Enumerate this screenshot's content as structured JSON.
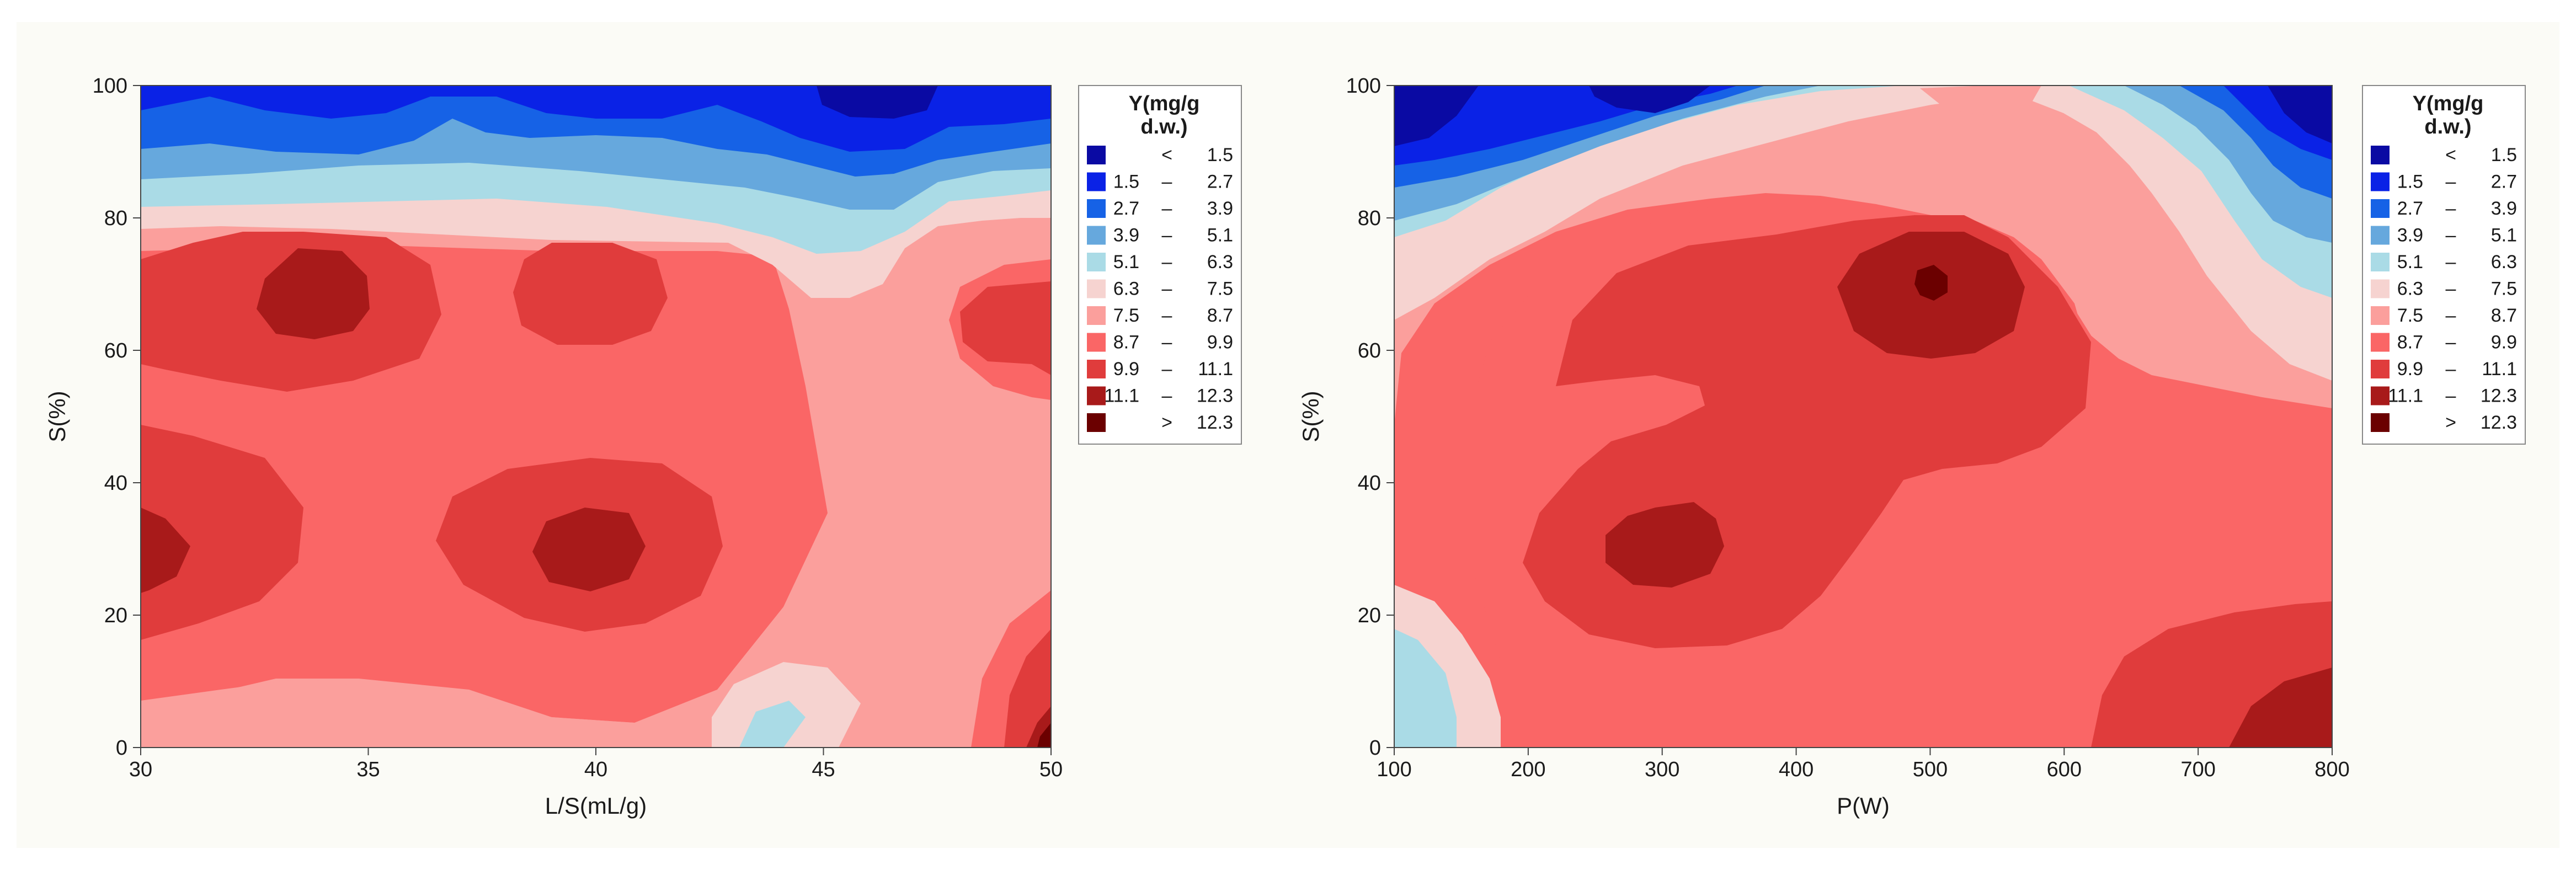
{
  "chart_data": [
    {
      "type": "contour",
      "title": "",
      "xlabel": "L/S(mL/g)",
      "ylabel": "S(%)",
      "xlim": [
        30,
        50
      ],
      "ylim": [
        0,
        100
      ],
      "xticks": [
        30,
        35,
        40,
        45,
        50
      ],
      "yticks": [
        0,
        20,
        40,
        60,
        80,
        100
      ],
      "legend_position": "right",
      "hotspots": [
        {
          "x": 34.2,
          "y": 69,
          "level": 10
        },
        {
          "x": 40.0,
          "y": 30,
          "level": 10
        },
        {
          "x": 30.0,
          "y": 30,
          "level": 10
        },
        {
          "x": 50.0,
          "y": 2,
          "level": 11
        },
        {
          "x": 46.0,
          "y": 100,
          "level": 0
        }
      ]
    },
    {
      "type": "contour",
      "title": "",
      "xlabel": "P(W)",
      "ylabel": "S(%)",
      "xlim": [
        100,
        800
      ],
      "ylim": [
        0,
        100
      ],
      "xticks": [
        100,
        200,
        300,
        400,
        500,
        600,
        700,
        800
      ],
      "yticks": [
        0,
        20,
        40,
        60,
        80,
        100
      ],
      "legend_position": "right",
      "hotspots": [
        {
          "x": 505,
          "y": 70,
          "level": 11
        },
        {
          "x": 300,
          "y": 30,
          "level": 10
        },
        {
          "x": 780,
          "y": 5,
          "level": 10
        },
        {
          "x": 120,
          "y": 97,
          "level": 1
        },
        {
          "x": 790,
          "y": 97,
          "level": 1
        }
      ]
    }
  ],
  "legend": {
    "title_line1": "Y(mg/g",
    "title_line2": "d.w.)",
    "entries": [
      {
        "low": "<",
        "high": "1.5",
        "color": "#0a0aa3"
      },
      {
        "low": "1.5",
        "high": "2.7",
        "color": "#0a22e6"
      },
      {
        "low": "2.7",
        "high": "3.9",
        "color": "#1662e6"
      },
      {
        "low": "3.9",
        "high": "5.1",
        "color": "#66a8dd"
      },
      {
        "low": "5.1",
        "high": "6.3",
        "color": "#aadbe6"
      },
      {
        "low": "6.3",
        "high": "7.5",
        "color": "#f6d3d0"
      },
      {
        "low": "7.5",
        "high": "8.7",
        "color": "#fb9f9c"
      },
      {
        "low": "8.7",
        "high": "9.9",
        "color": "#fa6666"
      },
      {
        "low": "9.9",
        "high": "11.1",
        "color": "#e03c3c"
      },
      {
        "low": "11.1",
        "high": "12.3",
        "color": "#a81a1a"
      },
      {
        "low": ">",
        "high": "12.3",
        "color": "#6b0000"
      }
    ]
  }
}
